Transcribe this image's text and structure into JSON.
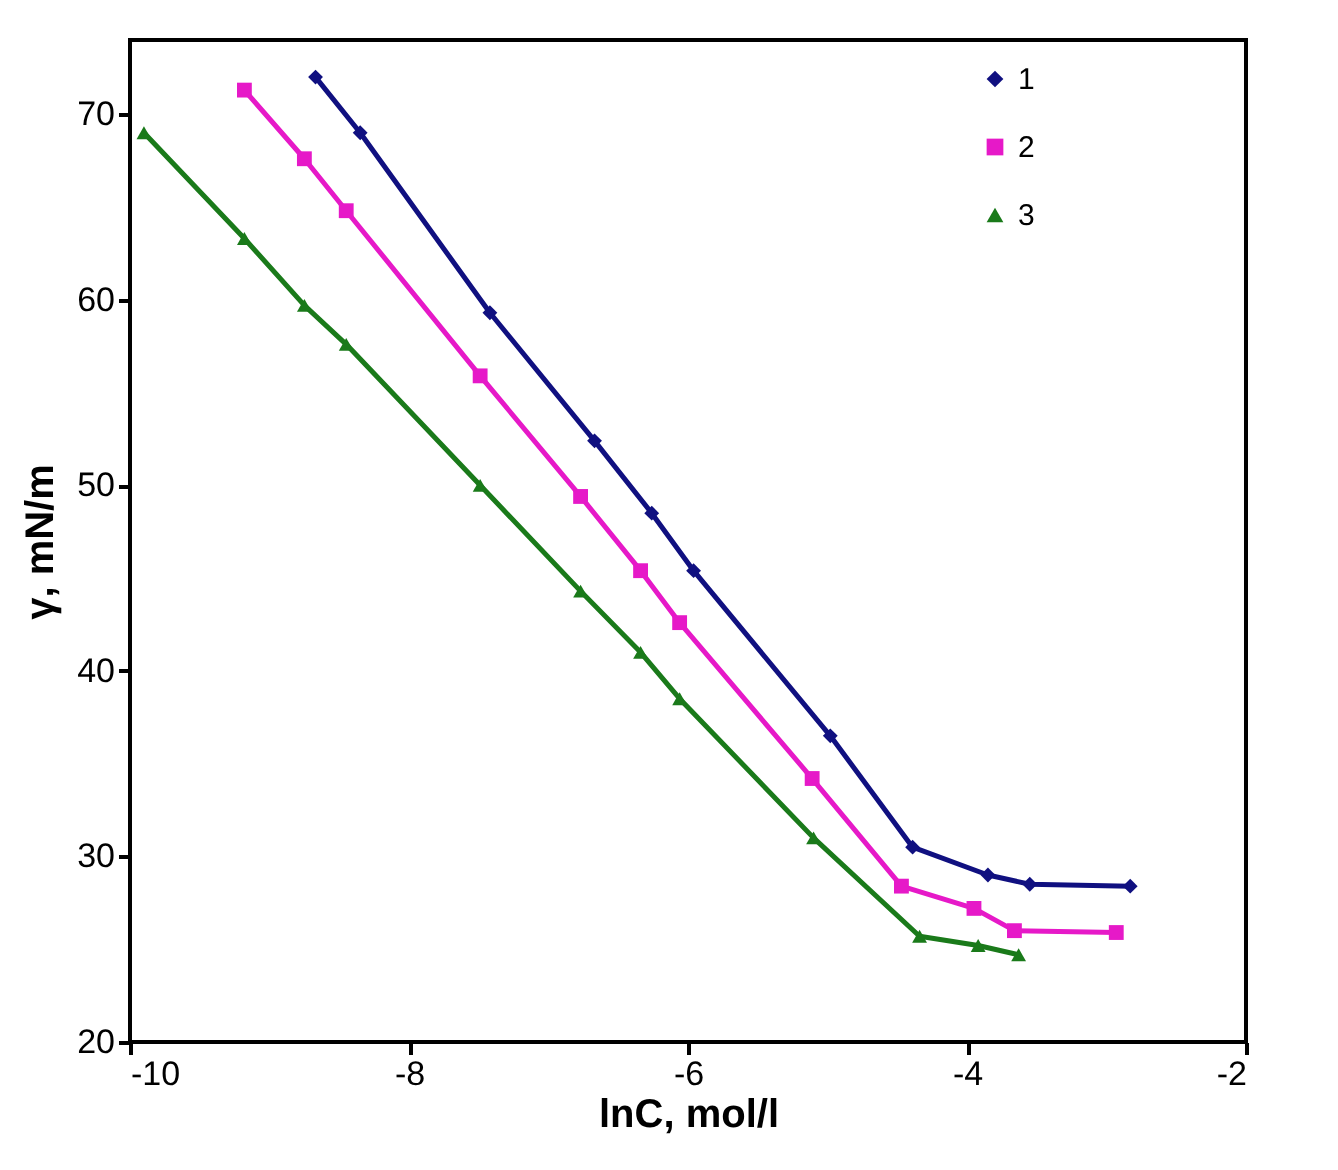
{
  "chart_data": {
    "type": "line",
    "xlabel": "lnC, mol/l",
    "ylabel": "γ, mN/m",
    "xlim": [
      -10,
      -2
    ],
    "ylim": [
      20,
      74
    ],
    "xticks": [
      -10,
      -8,
      -6,
      -4,
      -2
    ],
    "yticks": [
      20,
      30,
      40,
      50,
      60,
      70
    ],
    "grid": false,
    "legend": "top right",
    "line_style": "solid",
    "series": [
      {
        "name": "1",
        "color": "#101080",
        "marker": "diamond",
        "x": [
          -8.67,
          -8.35,
          -7.42,
          -6.67,
          -6.26,
          -5.96,
          -4.98,
          -4.39,
          -3.85,
          -3.55,
          -2.83
        ],
        "values": [
          72,
          69,
          59.3,
          52.4,
          48.5,
          45.4,
          36.5,
          30.5,
          29,
          28.5,
          28.4
        ]
      },
      {
        "name": "2",
        "color": "#e619c8",
        "marker": "square",
        "x": [
          -9.18,
          -8.75,
          -8.45,
          -7.49,
          -6.77,
          -6.34,
          -6.06,
          -5.11,
          -4.47,
          -3.95,
          -3.66,
          -2.93
        ],
        "values": [
          71.3,
          67.6,
          64.8,
          55.9,
          49.4,
          45.4,
          42.6,
          34.2,
          28.4,
          27.2,
          26,
          25.9
        ]
      },
      {
        "name": "3",
        "color": "#1a7a1a",
        "marker": "triangle",
        "x": [
          -9.9,
          -9.18,
          -8.75,
          -8.45,
          -7.49,
          -6.77,
          -6.34,
          -6.06,
          -5.1,
          -4.34,
          -3.92,
          -3.63
        ],
        "values": [
          69,
          63.3,
          59.7,
          57.6,
          50,
          44.3,
          41,
          38.5,
          31,
          25.7,
          25.2,
          24.7
        ]
      }
    ]
  }
}
